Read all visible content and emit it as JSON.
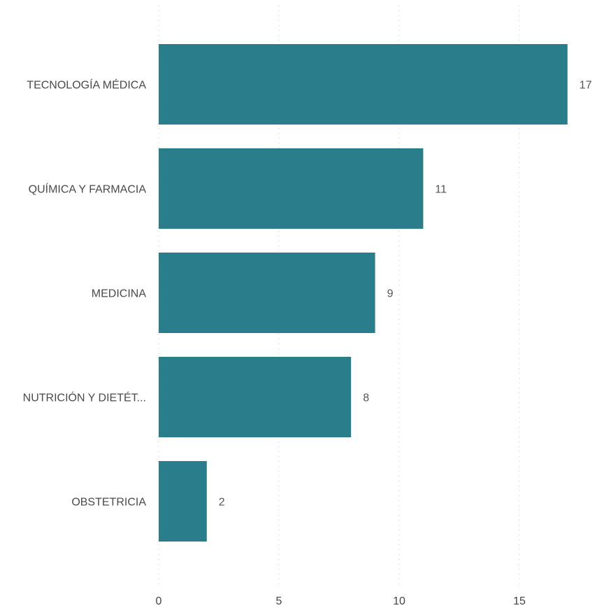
{
  "chart_data": {
    "type": "bar",
    "orientation": "horizontal",
    "categories": [
      "TECNOLOGÍA MÉDICA",
      "QUÍMICA Y FARMACIA",
      "MEDICINA",
      "NUTRICIÓN Y DIETÉT...",
      "OBSTETRICIA"
    ],
    "values": [
      17,
      11,
      9,
      8,
      2
    ],
    "xlim": [
      0,
      17.5
    ],
    "xticks": [
      0,
      5,
      10,
      15
    ],
    "grid": true,
    "bar_color": "#2a7e8c",
    "title": "",
    "xlabel": "",
    "ylabel": ""
  }
}
